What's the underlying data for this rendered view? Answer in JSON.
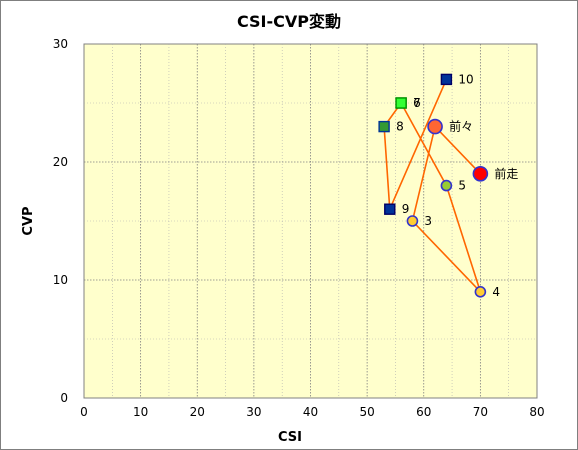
{
  "chart_data": {
    "type": "scatter",
    "title": "CSI-CVP変動",
    "xlabel": "CSI",
    "ylabel": "CVP",
    "xlim": [
      0,
      80
    ],
    "ylim": [
      0,
      30
    ],
    "xticks": [
      "0",
      "10",
      "20",
      "30",
      "40",
      "50",
      "60",
      "70",
      "80"
    ],
    "yticks": [
      "0",
      "10",
      "20",
      "30"
    ],
    "grid": true,
    "line_color": "#ff6600",
    "plot_background": "#ffffcc",
    "path_order": [
      "10",
      "9",
      "8",
      "7",
      "6",
      "5",
      "4",
      "3",
      "前々",
      "前走"
    ],
    "points": [
      {
        "label": "前走",
        "x": 70,
        "y": 19,
        "marker": "circle-large",
        "fill": "#ff0000",
        "stroke": "#3333cc"
      },
      {
        "label": "前々",
        "x": 62,
        "y": 23,
        "marker": "circle-large",
        "fill": "#ff6633",
        "stroke": "#3333cc"
      },
      {
        "label": "3",
        "x": 58,
        "y": 15,
        "marker": "circle",
        "fill": "#ffcc33",
        "stroke": "#3333cc"
      },
      {
        "label": "4",
        "x": 70,
        "y": 9,
        "marker": "circle",
        "fill": "#ffcc33",
        "stroke": "#3333cc"
      },
      {
        "label": "5",
        "x": 64,
        "y": 18,
        "marker": "circle",
        "fill": "#99cc33",
        "stroke": "#3333cc"
      },
      {
        "label": "6",
        "x": 56,
        "y": 25,
        "marker": "square",
        "fill": "#33cc33",
        "stroke": "#006600"
      },
      {
        "label": "7",
        "x": 56,
        "y": 25,
        "marker": "square",
        "fill": "#33ff33",
        "stroke": "#009900"
      },
      {
        "label": "8",
        "x": 53,
        "y": 23,
        "marker": "square",
        "fill": "#339933",
        "stroke": "#003399"
      },
      {
        "label": "9",
        "x": 54,
        "y": 16,
        "marker": "square",
        "fill": "#003399",
        "stroke": "#000066"
      },
      {
        "label": "10",
        "x": 64,
        "y": 27,
        "marker": "square",
        "fill": "#003399",
        "stroke": "#000066"
      }
    ]
  }
}
